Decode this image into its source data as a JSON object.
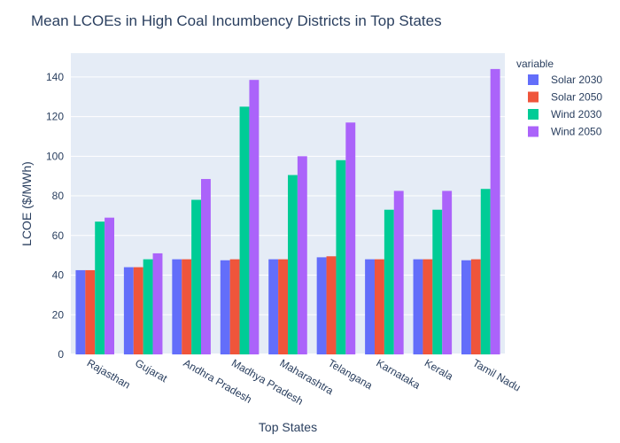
{
  "chart_data": {
    "type": "bar",
    "title": "Mean LCOEs in High Coal Incumbency Districts in Top States",
    "xlabel": "Top States",
    "ylabel": "LCOE ($/MWh)",
    "ylim": [
      0,
      152
    ],
    "yticks": [
      0,
      20,
      40,
      60,
      80,
      100,
      120,
      140
    ],
    "grid": true,
    "legend": {
      "title": "variable",
      "placement": "right"
    },
    "categories": [
      "Rajasthan",
      "Gujarat",
      "Andhra Pradesh",
      "Madhya Pradesh",
      "Maharashtra",
      "Telangana",
      "Karnataka",
      "Kerala",
      "Tamil Nadu"
    ],
    "series": [
      {
        "name": "Solar 2030",
        "color": "#636efa",
        "values": [
          42.5,
          44,
          48,
          47.5,
          48,
          49,
          48,
          48,
          47.5
        ]
      },
      {
        "name": "Solar 2050",
        "color": "#EF553B",
        "values": [
          42.5,
          44,
          48,
          48,
          48,
          49.5,
          48,
          48,
          48
        ]
      },
      {
        "name": "Wind 2030",
        "color": "#00cc96",
        "values": [
          67,
          48,
          78,
          125,
          90.5,
          98,
          73,
          73,
          83.5
        ]
      },
      {
        "name": "Wind 2050",
        "color": "#ab63fa",
        "values": [
          69,
          51,
          88.5,
          138.5,
          100,
          117,
          82.5,
          82.5,
          144
        ]
      }
    ]
  }
}
